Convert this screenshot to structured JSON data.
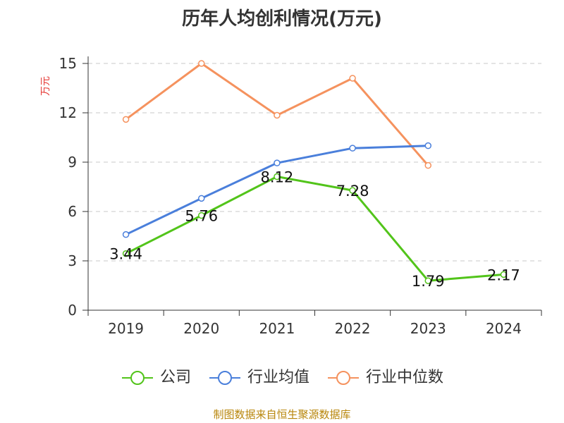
{
  "chart_data": {
    "type": "line",
    "title": "历年人均创利情况(万元)",
    "ylabel": "万元",
    "xlabel": "",
    "categories": [
      "2019",
      "2020",
      "2021",
      "2022",
      "2023",
      "2024"
    ],
    "ylim": [
      0,
      15
    ],
    "yticks": [
      0,
      3,
      6,
      9,
      12,
      15
    ],
    "grid": true,
    "legend_position": "bottom",
    "series": [
      {
        "name": "公司",
        "color": "#52c41a",
        "values": [
          3.44,
          5.76,
          8.12,
          7.28,
          1.79,
          2.17
        ],
        "labels": [
          "3.44",
          "5.76",
          "8.12",
          "7.28",
          "1.79",
          "2.17"
        ]
      },
      {
        "name": "行业均值",
        "color": "#4a7fdb",
        "values": [
          4.6,
          6.8,
          8.95,
          9.85,
          10.0,
          null
        ]
      },
      {
        "name": "行业中位数",
        "color": "#f5925e",
        "values": [
          11.6,
          15.0,
          11.85,
          14.1,
          8.8,
          null
        ]
      }
    ]
  },
  "source": "制图数据来自恒生聚源数据库"
}
